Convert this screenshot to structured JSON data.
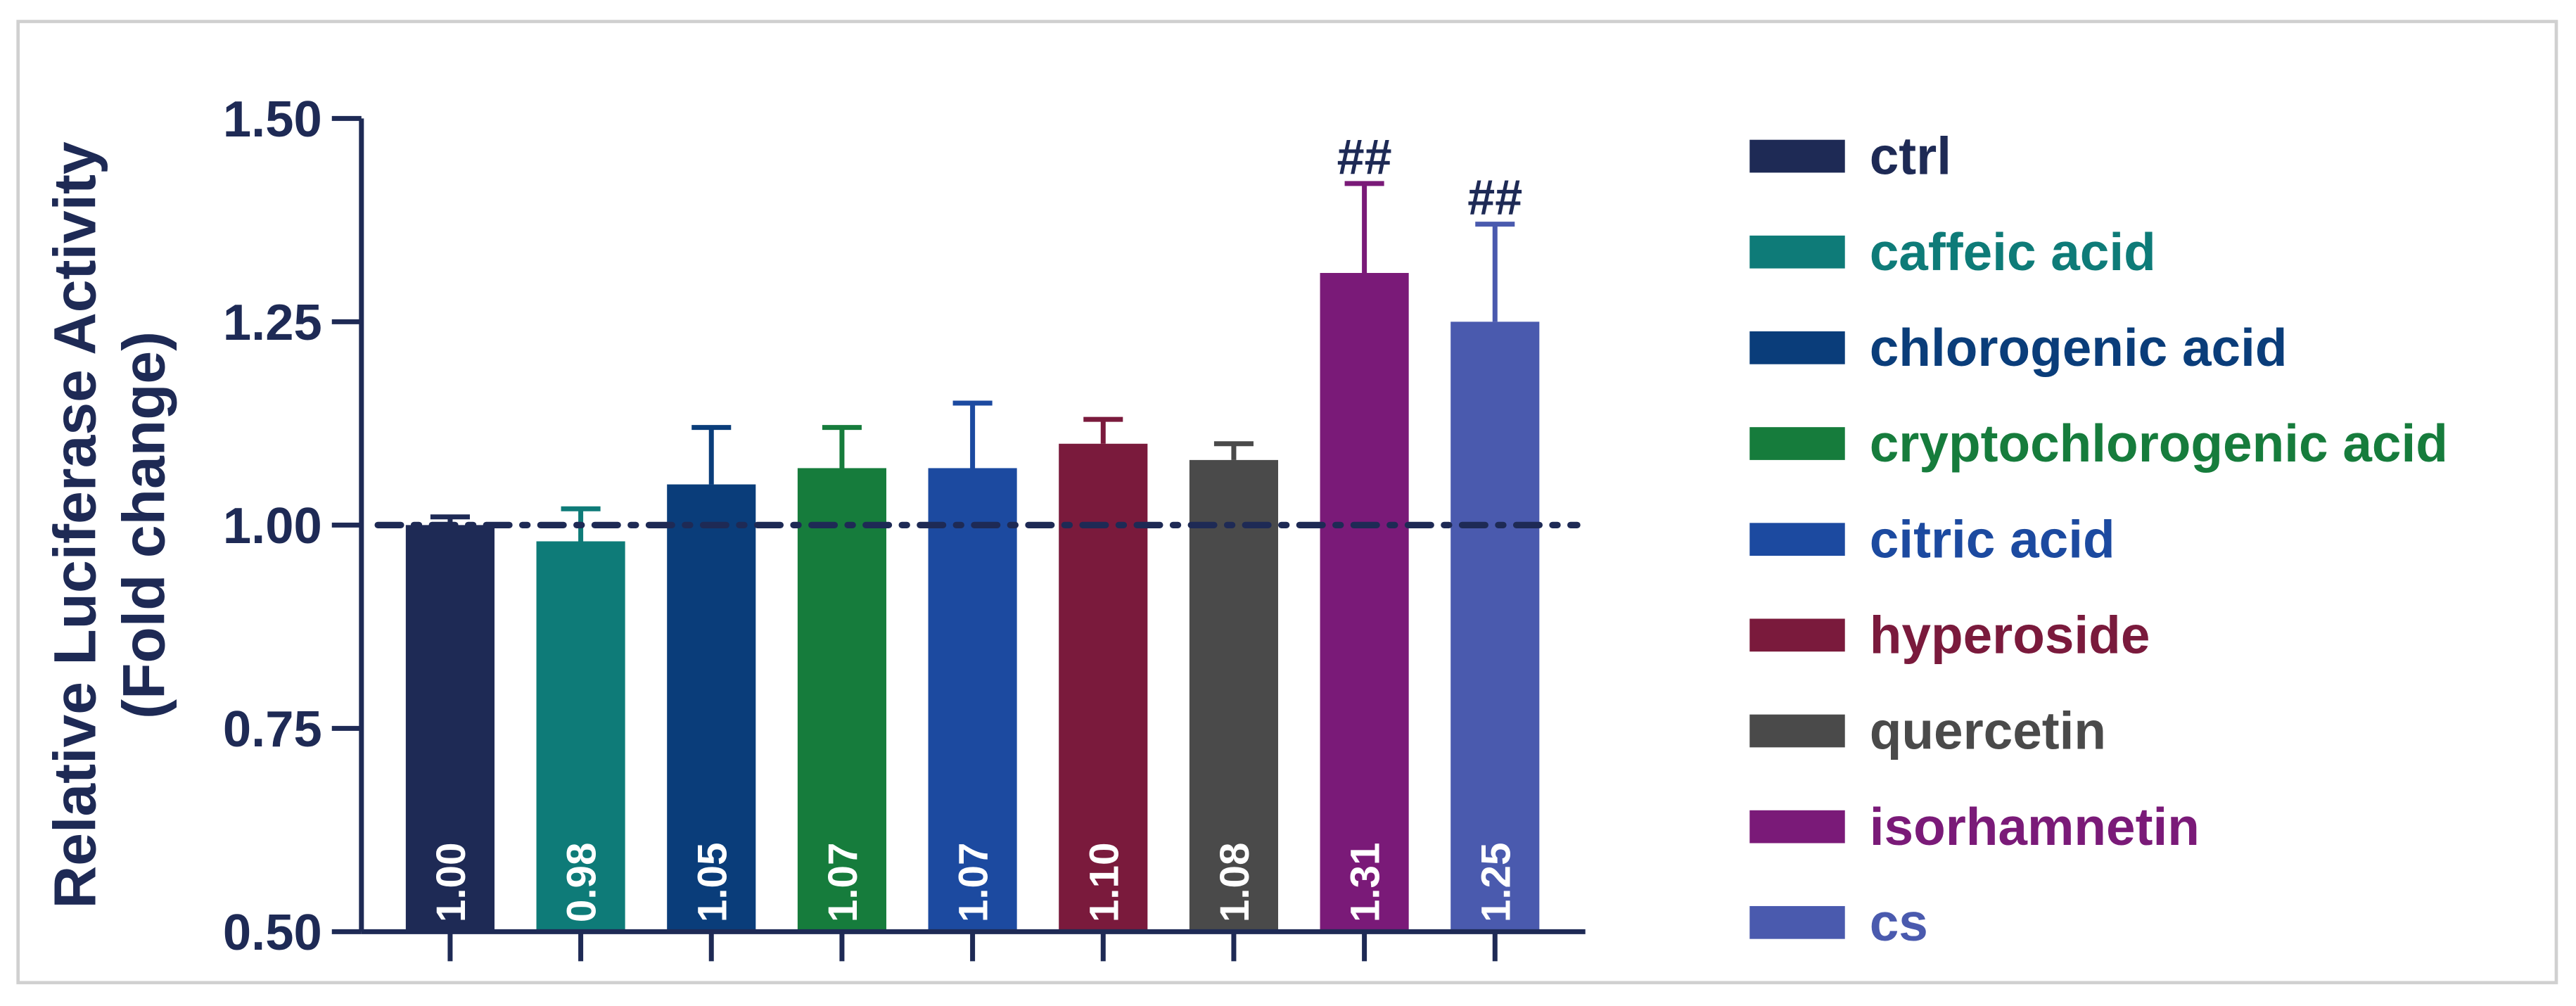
{
  "chart_data": {
    "type": "bar",
    "ylabel": [
      "Relative Luciferase Activity",
      "(Fold change)"
    ],
    "categories": [
      "ctrl",
      "caffeic acid",
      "chlorogenic acid",
      "cryptochlorogenic acid",
      "citric acid",
      "hyperoside",
      "quercetin",
      "isorhamnetin",
      "cs"
    ],
    "colors": [
      "#1e2a55",
      "#0e7b78",
      "#0a3d7a",
      "#167c3c",
      "#1c4aa0",
      "#7a1a3c",
      "#4a4a4a",
      "#7a1a78",
      "#4a5aae"
    ],
    "values": [
      1.0,
      0.98,
      1.05,
      1.07,
      1.07,
      1.1,
      1.08,
      1.31,
      1.25
    ],
    "value_labels": [
      "1.00",
      "0.98",
      "1.05",
      "1.07",
      "1.07",
      "1.10",
      "1.08",
      "1.31",
      "1.25"
    ],
    "errors": [
      0.01,
      0.04,
      0.07,
      0.05,
      0.08,
      0.03,
      0.02,
      0.11,
      0.12
    ],
    "annotations": [
      null,
      null,
      null,
      null,
      null,
      null,
      null,
      "##",
      "##"
    ],
    "reference_line": 1,
    "ylim": [
      0.5,
      1.5
    ],
    "yticks": [
      {
        "value": 0.5,
        "label": "0.50"
      },
      {
        "value": 0.75,
        "label": "0.75"
      },
      {
        "value": 1,
        "label": "1.00"
      },
      {
        "value": 1.25,
        "label": "1.25"
      },
      {
        "value": 1.5,
        "label": "1.50"
      }
    ],
    "legend": "right"
  }
}
